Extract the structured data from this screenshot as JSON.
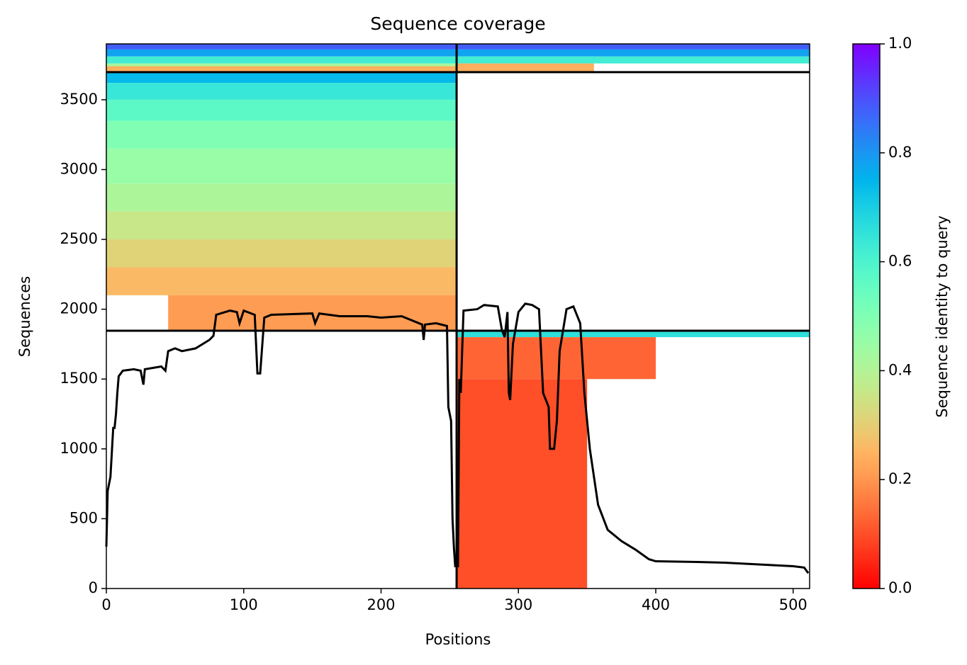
{
  "chart_data": {
    "type": "coverage",
    "title": "Sequence coverage",
    "xlabel": "Positions",
    "ylabel": "Sequences",
    "colorbar_label": "Sequence identity to query",
    "xlim": [
      0,
      512
    ],
    "xticks": [
      0,
      100,
      200,
      300,
      400,
      500
    ],
    "ylim": [
      0,
      3900
    ],
    "yticks": [
      0,
      500,
      1000,
      1500,
      2000,
      2500,
      3000,
      3500
    ],
    "clim": [
      0,
      1
    ],
    "cticks": [
      {
        "value": 0,
        "label": "0.0"
      },
      {
        "value": 0.2,
        "label": "0.2"
      },
      {
        "value": 0.4,
        "label": "0.4"
      },
      {
        "value": 0.6,
        "label": "0.6"
      },
      {
        "value": 0.8,
        "label": "0.8"
      },
      {
        "value": 1,
        "label": "1.0"
      }
    ],
    "colormap": "rainbow_r",
    "blocks": [
      {
        "x": [
          0,
          512
        ],
        "y": [
          3860,
          3900
        ],
        "identity": 0.88
      },
      {
        "x": [
          0,
          512
        ],
        "y": [
          3810,
          3860
        ],
        "identity": 0.78
      },
      {
        "x": [
          0,
          512
        ],
        "y": [
          3760,
          3810
        ],
        "identity": 0.62
      },
      {
        "x": [
          0,
          255
        ],
        "y": [
          3740,
          3760
        ],
        "identity": 0.42
      },
      {
        "x": [
          0,
          255
        ],
        "y": [
          3698,
          3740
        ],
        "identity": 0.24
      },
      {
        "x": [
          255,
          355
        ],
        "y": [
          3698,
          3760
        ],
        "identity": 0.24
      },
      {
        "x": [
          0,
          255
        ],
        "y": [
          3620,
          3698
        ],
        "identity": 0.74
      },
      {
        "x": [
          0,
          255
        ],
        "y": [
          3500,
          3620
        ],
        "identity": 0.64
      },
      {
        "x": [
          0,
          255
        ],
        "y": [
          3350,
          3500
        ],
        "identity": 0.57
      },
      {
        "x": [
          0,
          255
        ],
        "y": [
          3150,
          3350
        ],
        "identity": 0.5
      },
      {
        "x": [
          0,
          255
        ],
        "y": [
          2900,
          3150
        ],
        "identity": 0.45
      },
      {
        "x": [
          0,
          255
        ],
        "y": [
          2700,
          2900
        ],
        "identity": 0.41
      },
      {
        "x": [
          0,
          255
        ],
        "y": [
          2500,
          2700
        ],
        "identity": 0.36
      },
      {
        "x": [
          0,
          255
        ],
        "y": [
          2300,
          2500
        ],
        "identity": 0.31
      },
      {
        "x": [
          0,
          255
        ],
        "y": [
          2100,
          2300
        ],
        "identity": 0.26
      },
      {
        "x": [
          45,
          255
        ],
        "y": [
          1846,
          2100
        ],
        "identity": 0.21
      },
      {
        "x": [
          255,
          512
        ],
        "y": [
          1800,
          1846
        ],
        "identity": 0.66
      },
      {
        "x": [
          255,
          400
        ],
        "y": [
          1500,
          1800
        ],
        "identity": 0.13
      },
      {
        "x": [
          255,
          350
        ],
        "y": [
          0,
          1500
        ],
        "identity": 0.1
      }
    ],
    "boundaries_y": [
      3698,
      1846
    ],
    "boundaries_x": [
      255
    ],
    "line": {
      "color": "#000000",
      "x": [
        0,
        1,
        3,
        5,
        6,
        7,
        8,
        9,
        12,
        20,
        25,
        27,
        28,
        40,
        43,
        45,
        50,
        55,
        65,
        75,
        78,
        80,
        90,
        95,
        97,
        100,
        108,
        110,
        112,
        115,
        120,
        150,
        152,
        155,
        170,
        190,
        200,
        215,
        230,
        231,
        232,
        240,
        248,
        249,
        251,
        252,
        253,
        254,
        256,
        257,
        258,
        260,
        270,
        275,
        285,
        288,
        290,
        292,
        293,
        294,
        296,
        300,
        305,
        310,
        315,
        318,
        322,
        323,
        326,
        328,
        330,
        335,
        340,
        345,
        348,
        352,
        358,
        365,
        375,
        385,
        395,
        400,
        430,
        450,
        480,
        500,
        508,
        511
      ],
      "values": [
        300,
        700,
        800,
        1150,
        1150,
        1250,
        1400,
        1520,
        1560,
        1570,
        1560,
        1460,
        1570,
        1590,
        1560,
        1700,
        1720,
        1700,
        1720,
        1780,
        1810,
        1960,
        1990,
        1980,
        1900,
        1990,
        1960,
        1540,
        1540,
        1940,
        1960,
        1970,
        1900,
        1970,
        1950,
        1950,
        1940,
        1950,
        1890,
        1780,
        1890,
        1900,
        1880,
        1300,
        1200,
        500,
        300,
        160,
        160,
        1500,
        1400,
        1990,
        2000,
        2030,
        2020,
        1850,
        1800,
        1980,
        1400,
        1350,
        1750,
        1980,
        2040,
        2030,
        2000,
        1400,
        1300,
        1000,
        1000,
        1200,
        1700,
        2000,
        2020,
        1900,
        1400,
        1000,
        600,
        420,
        340,
        280,
        210,
        195,
        190,
        185,
        170,
        160,
        150,
        110
      ]
    }
  }
}
